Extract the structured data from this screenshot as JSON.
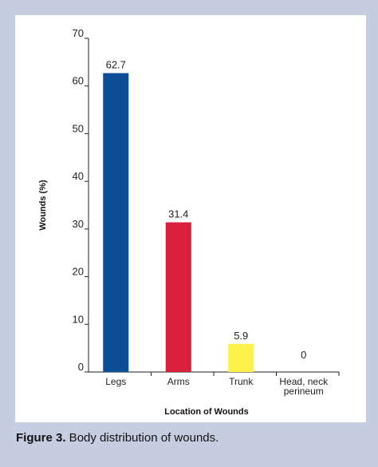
{
  "caption": {
    "label": "Figure 3.",
    "text": " Body distribution of wounds."
  },
  "colors": {
    "frame": "#c5cde1",
    "panel": "#ffffff"
  },
  "chart_data": {
    "type": "bar",
    "categories": [
      "Legs",
      "Arms",
      "Trunk",
      "Head, neck perineum"
    ],
    "category_lines": [
      [
        "Legs"
      ],
      [
        "Arms"
      ],
      [
        "Trunk"
      ],
      [
        "Head, neck",
        "perineum"
      ]
    ],
    "values": [
      62.7,
      31.4,
      5.9,
      0
    ],
    "data_labels": [
      "62.7",
      "31.4",
      "5.9",
      "0"
    ],
    "colors": [
      "#0b4d97",
      "#d8203a",
      "#fdf04a",
      "#ffffff"
    ],
    "xlabel": "Location of Wounds",
    "ylabel": "Wounds (%)",
    "ylim": [
      0,
      70
    ],
    "yticks": [
      0,
      10,
      20,
      30,
      40,
      50,
      60,
      70
    ],
    "grid": false
  }
}
